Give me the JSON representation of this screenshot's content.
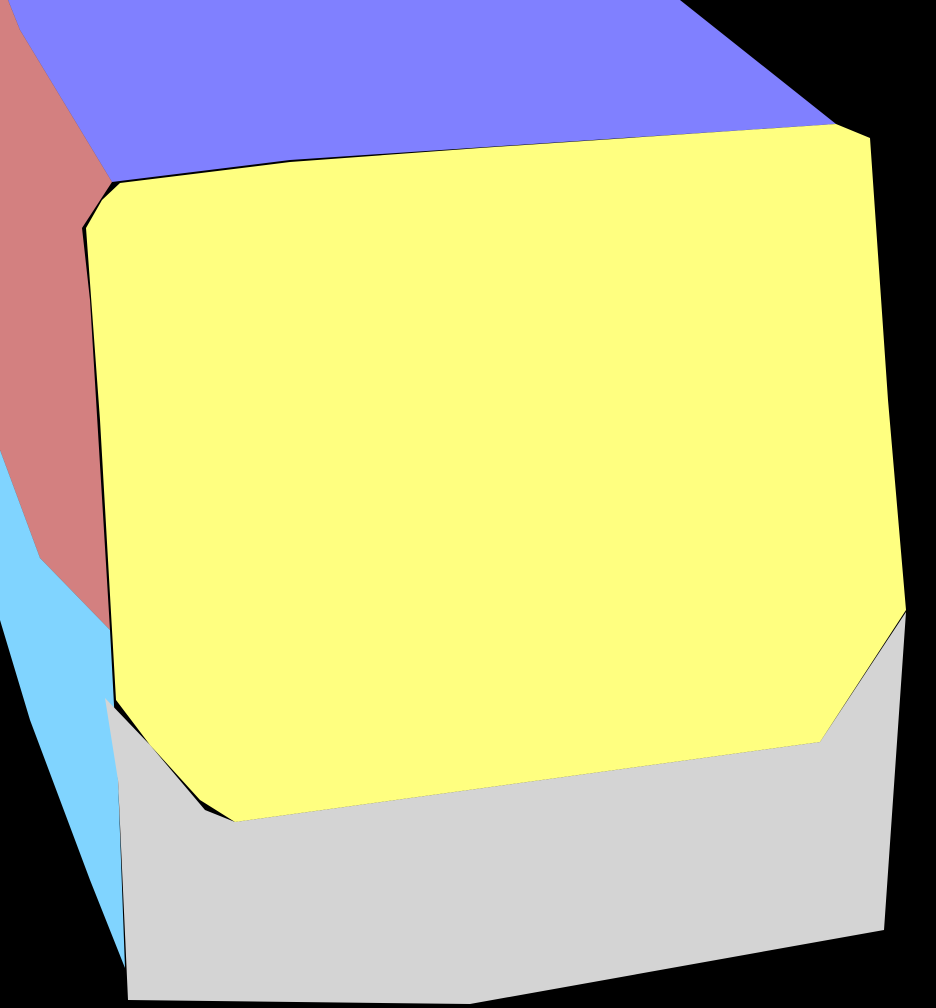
{
  "viewport": {
    "background": "#000000"
  },
  "cube": {
    "faces": {
      "top": {
        "color": "#8080FF"
      },
      "left_upper": {
        "color": "#D38080"
      },
      "left_lower": {
        "color": "#80D4FF"
      },
      "front": {
        "color": "#FFFF80"
      },
      "bottom": {
        "color": "#D4D4D4"
      }
    }
  }
}
